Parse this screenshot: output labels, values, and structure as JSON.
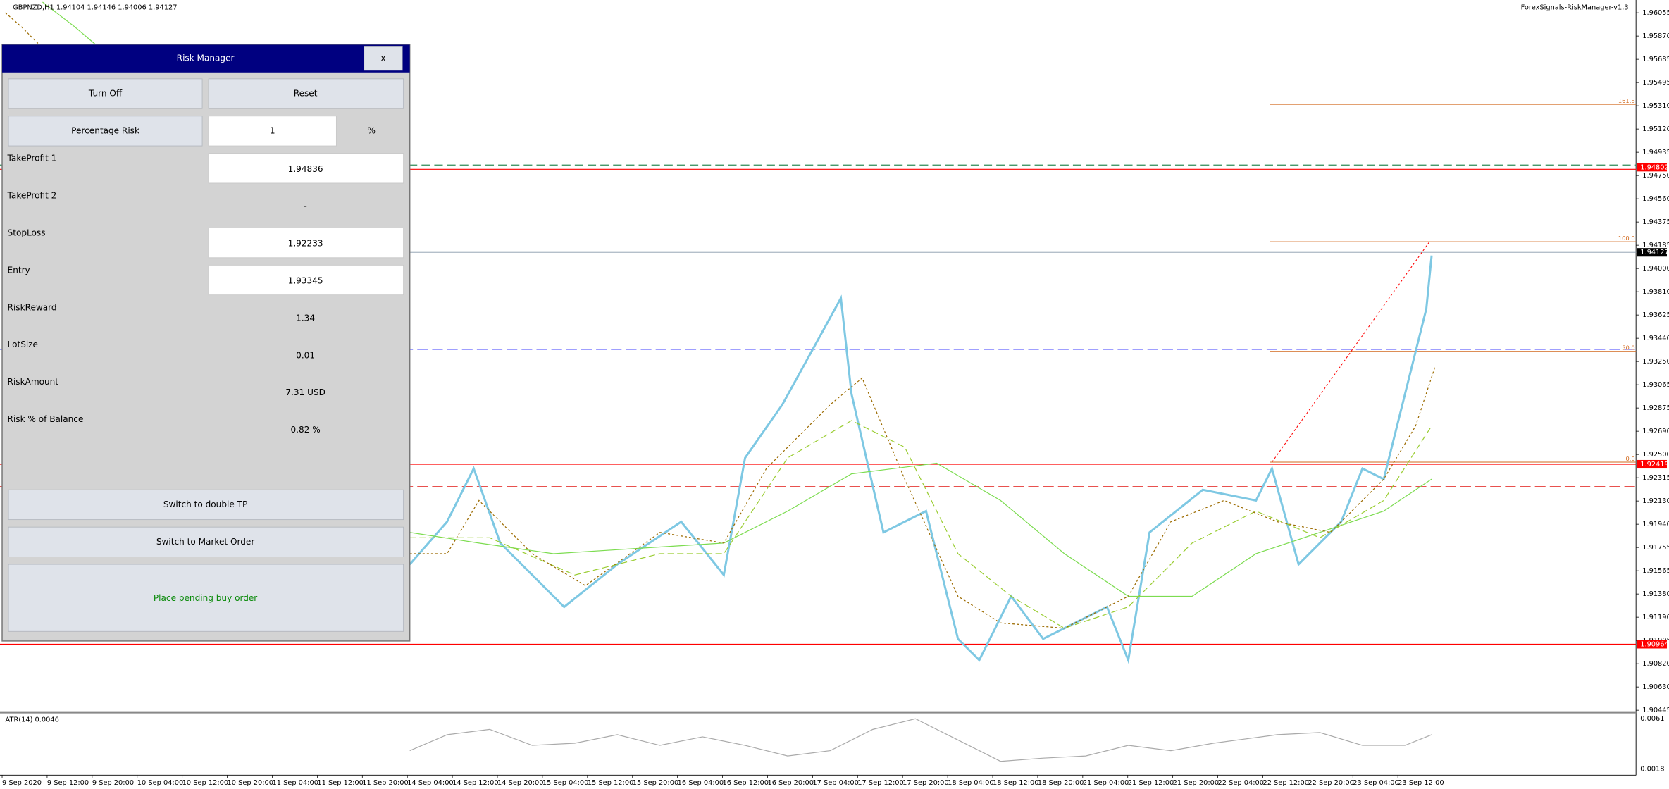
{
  "header": {
    "symbol_info": "GBPNZD,H1  1.94104 1.94146 1.94006 1.94127",
    "indicator_name": "ForexSignals-RiskManager-v1.3"
  },
  "price_axis": {
    "labels": [
      "1.96055",
      "1.95870",
      "1.95685",
      "1.95495",
      "1.95310",
      "1.95120",
      "1.94935",
      "1.94750",
      "1.94560",
      "1.94375",
      "1.94185",
      "1.94000",
      "1.93810",
      "1.93625",
      "1.93440",
      "1.93250",
      "1.93065",
      "1.92875",
      "1.92690",
      "1.92500",
      "1.92315",
      "1.92130",
      "1.91940",
      "1.91755",
      "1.91565",
      "1.91380",
      "1.91190",
      "1.91005",
      "1.90820",
      "1.90630",
      "1.90445"
    ],
    "markers": [
      {
        "label": "1.94802",
        "color": "#ff0000"
      },
      {
        "label": "1.94127",
        "color": "#000000"
      },
      {
        "label": "1.92419",
        "color": "#ff0000"
      },
      {
        "label": "1.90964",
        "color": "#ff0000"
      }
    ]
  },
  "fibo_levels": [
    "161.8",
    "100.0",
    "50.0",
    "0.0"
  ],
  "time_axis": [
    "9 Sep 2020",
    "9 Sep 12:00",
    "9 Sep 20:00",
    "10 Sep 04:00",
    "10 Sep 12:00",
    "10 Sep 20:00",
    "11 Sep 04:00",
    "11 Sep 12:00",
    "11 Sep 20:00",
    "14 Sep 04:00",
    "14 Sep 12:00",
    "14 Sep 20:00",
    "15 Sep 04:00",
    "15 Sep 12:00",
    "15 Sep 20:00",
    "16 Sep 04:00",
    "16 Sep 12:00",
    "16 Sep 20:00",
    "17 Sep 04:00",
    "17 Sep 12:00",
    "17 Sep 20:00",
    "18 Sep 04:00",
    "18 Sep 12:00",
    "18 Sep 20:00",
    "21 Sep 04:00",
    "21 Sep 12:00",
    "21 Sep 20:00",
    "22 Sep 04:00",
    "22 Sep 12:00",
    "22 Sep 20:00",
    "23 Sep 04:00",
    "23 Sep 12:00"
  ],
  "atr": {
    "label": "ATR(14) 0.0046",
    "axis_top": "0.0061",
    "axis_bottom": "0.0018"
  },
  "panel": {
    "title": "Risk Manager",
    "close": "x",
    "turn_off": "Turn Off",
    "reset": "Reset",
    "percentage_risk": "Percentage Risk",
    "risk_input": "1",
    "risk_unit": "%",
    "rows": [
      {
        "label": "TakeProfit 1",
        "value": "1.94836",
        "box": true
      },
      {
        "label": "TakeProfit 2",
        "value": "-",
        "box": false
      },
      {
        "label": "StopLoss",
        "value": "1.92233",
        "box": true
      },
      {
        "label": "Entry",
        "value": "1.93345",
        "box": true
      },
      {
        "label": "RiskReward",
        "value": "1.34",
        "box": false
      },
      {
        "label": "LotSize",
        "value": "0.01",
        "box": false
      },
      {
        "label": "RiskAmount",
        "value": "7.31 USD",
        "box": false
      },
      {
        "label": "Risk % of Balance",
        "value": "0.82 %",
        "box": false
      }
    ],
    "double_tp": "Switch to double TP",
    "market_order": "Switch to Market Order",
    "place_order": "Place pending buy order"
  }
}
